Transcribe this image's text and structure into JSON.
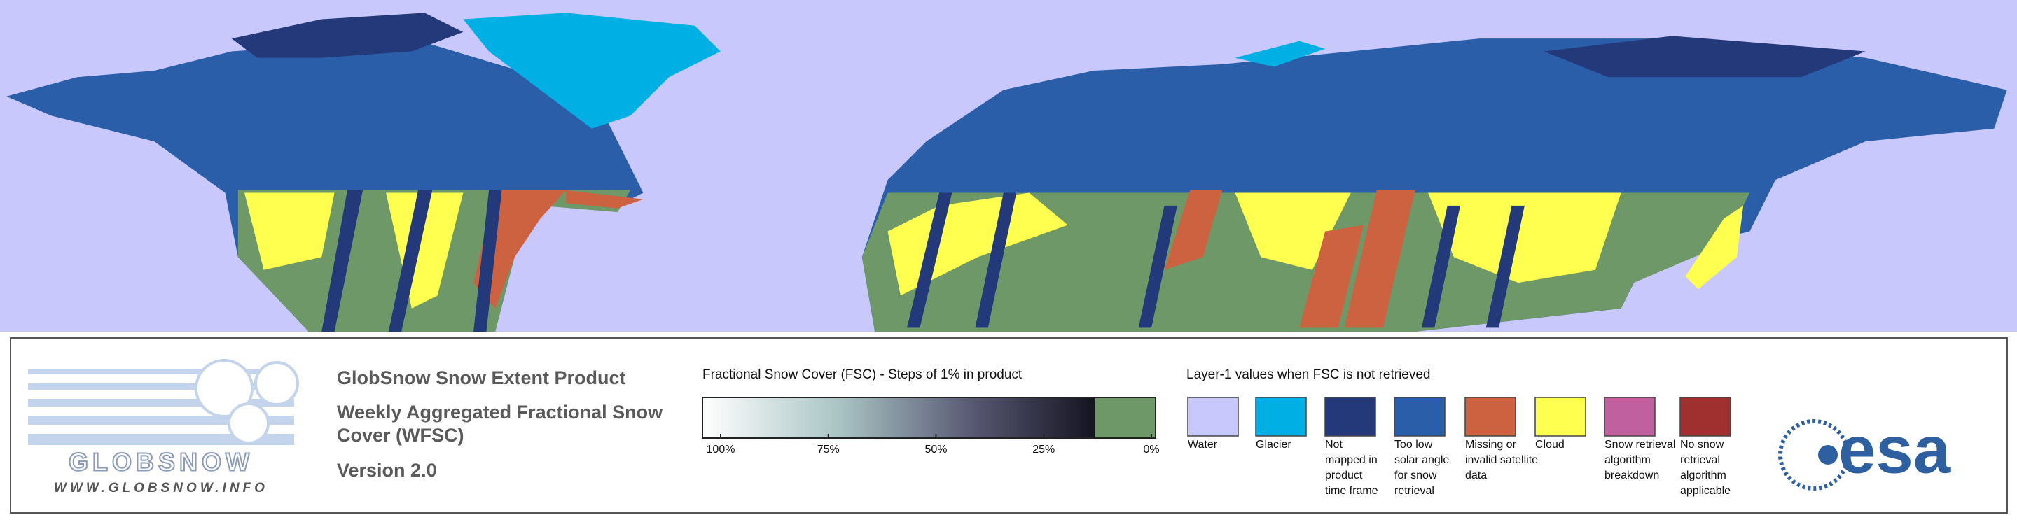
{
  "logo": {
    "name": "GLOBSNOW",
    "url": "WWW.GLOBSNOW.INFO"
  },
  "product": {
    "title": "GlobSnow Snow Extent Product",
    "subtitle_lines": [
      "Weekly Aggregated Fractional Snow",
      "Cover (WFSC)"
    ],
    "version": "Version 2.0"
  },
  "fsc_legend": {
    "title": "Fractional Snow Cover (FSC) - Steps of 1% in product",
    "labels": [
      "100%",
      "75%",
      "50%",
      "25%",
      "0%"
    ]
  },
  "layer1_legend": {
    "title": "Layer-1 values when FSC is not retrieved",
    "items": [
      {
        "color": "#c8c8fc",
        "label_lines": [
          "Water"
        ]
      },
      {
        "color": "#00b0e4",
        "label_lines": [
          "Glacier"
        ]
      },
      {
        "color": "#24397a",
        "label_lines": [
          "Not",
          "mapped in",
          "product",
          "time frame"
        ]
      },
      {
        "color": "#2a5ea8",
        "label_lines": [
          "Too low",
          "solar angle",
          "for snow",
          "retrieval"
        ]
      },
      {
        "color": "#cc6240",
        "label_lines": [
          "Missing or",
          "invalid satellite",
          "data"
        ]
      },
      {
        "color": "#ffff50",
        "label_lines": [
          "Cloud"
        ]
      },
      {
        "color": "#c0609e",
        "label_lines": [
          "Snow retrieval",
          "algorithm",
          "breakdown"
        ]
      },
      {
        "color": "#a03030",
        "label_lines": [
          "No snow",
          "retrieval",
          "algorithm",
          "applicable"
        ]
      }
    ]
  },
  "agency": "esa"
}
